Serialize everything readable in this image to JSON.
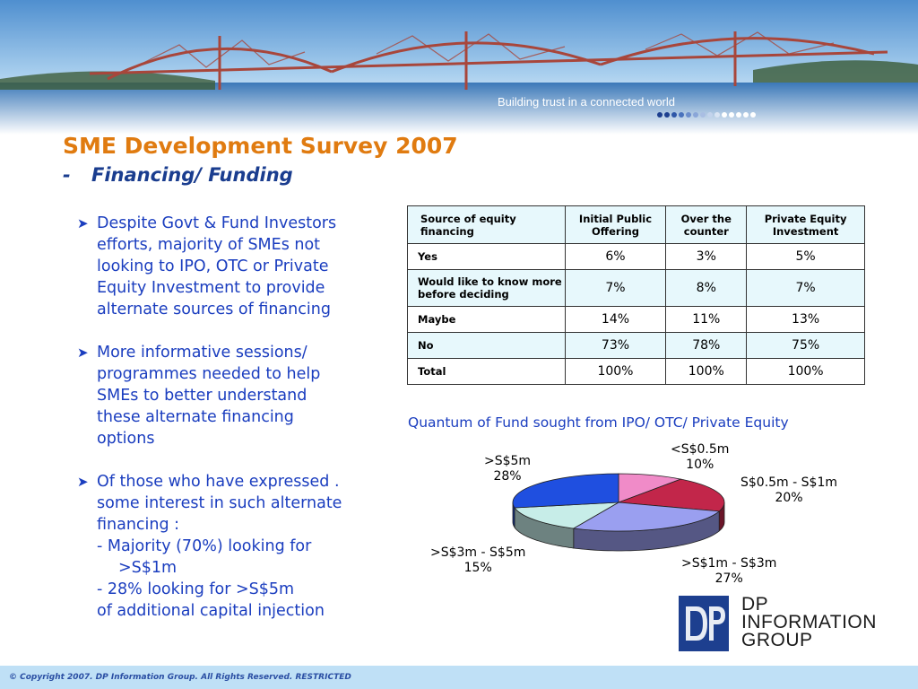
{
  "banner": {
    "tagline": "Building trust in a connected world"
  },
  "slide": {
    "title": "SME Development Survey 2007",
    "subtitle_dash": "-",
    "subtitle": "Financing/ Funding"
  },
  "bullets": [
    {
      "lines": [
        "Despite Govt & Fund Investors",
        "efforts, majority of SMEs not",
        "looking to IPO, OTC or Private",
        "Equity Investment to provide",
        "alternate sources of financing"
      ]
    },
    {
      "lines": [
        "More informative sessions/",
        "programmes needed to help",
        "SMEs to better understand",
        "these alternate financing",
        "options"
      ]
    },
    {
      "lines": [
        "Of those who have expressed .",
        "some interest in such alternate",
        "financing :",
        "-  Majority (70%) looking for",
        ">S$1m",
        "-  28% looking for >S$5m",
        "of additional capital injection"
      ]
    }
  ],
  "table": {
    "headers": [
      "Source of equity financing",
      "Initial Public Offering",
      "Over the counter",
      "Private Equity Investment"
    ],
    "rows": [
      {
        "label": "Yes",
        "values": [
          "6%",
          "3%",
          "5%"
        ]
      },
      {
        "label": "Would like to know more before deciding",
        "values": [
          "7%",
          "8%",
          "7%"
        ]
      },
      {
        "label": "Maybe",
        "values": [
          "14%",
          "11%",
          "13%"
        ]
      },
      {
        "label": "No",
        "values": [
          "73%",
          "78%",
          "75%"
        ]
      },
      {
        "label": "Total",
        "values": [
          "100%",
          "100%",
          "100%"
        ]
      }
    ]
  },
  "chart_data": {
    "type": "pie",
    "title": "Quantum of Fund sought from IPO/ OTC/ Private Equity",
    "slices": [
      {
        "label": "<S$0.5m",
        "value": 10,
        "value_label": "10%",
        "color": "#f08bc8"
      },
      {
        "label": "S$0.5m -  S$1m",
        "value": 20,
        "value_label": "20%",
        "color": "#c2264a"
      },
      {
        "label": ">S$1m -  S$3m",
        "value": 27,
        "value_label": "27%",
        "color": "#9a9ff0"
      },
      {
        "label": ">S$3m -  S$5m",
        "value": 15,
        "value_label": "15%",
        "color": "#c7ede8"
      },
      {
        "label": ">S$5m",
        "value": 28,
        "value_label": "28%",
        "color": "#1f4fe0"
      }
    ]
  },
  "logo": {
    "mark": "DP",
    "lines": [
      "DP",
      "INFORMATION",
      "GROUP"
    ]
  },
  "footer": {
    "text": "© Copyright 2007. DP Information Group. All Rights Reserved. RESTRICTED"
  },
  "colors": {
    "title": "#e07b10",
    "accent": "#1a3dbf",
    "table_header_bg": "#e7f8fc",
    "footer_bg": "#bfe0f6"
  }
}
